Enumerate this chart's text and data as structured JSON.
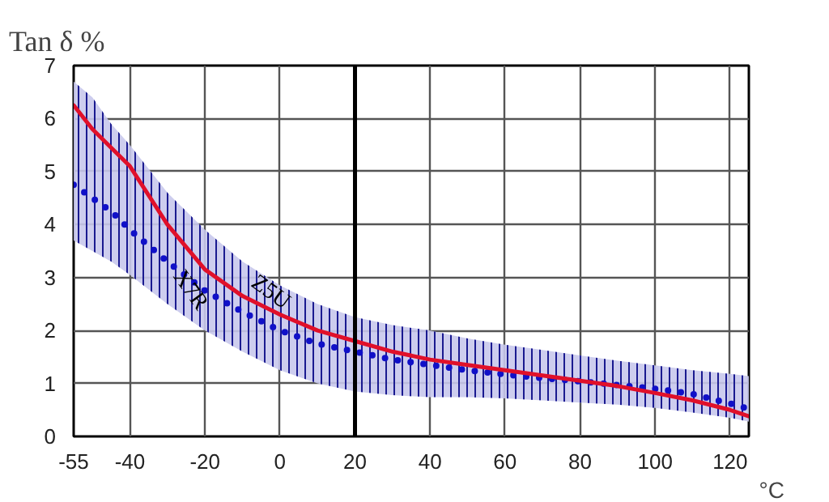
{
  "chart_data": {
    "type": "line",
    "title": "Tan δ %",
    "xlabel": "°C",
    "x": [
      -55,
      -50,
      -45,
      -40,
      -30,
      -20,
      -10,
      0,
      10,
      20,
      30,
      40,
      50,
      60,
      70,
      80,
      90,
      100,
      110,
      120,
      125
    ],
    "series": [
      {
        "name": "X7R",
        "color": "#1010c8",
        "line_style": "dotted",
        "values": [
          4.75,
          4.5,
          4.25,
          3.9,
          3.3,
          2.75,
          2.35,
          2.0,
          1.75,
          1.6,
          1.45,
          1.35,
          1.25,
          1.17,
          1.1,
          1.04,
          0.97,
          0.9,
          0.8,
          0.62,
          0.52
        ],
        "upper": [
          6.7,
          6.4,
          5.9,
          5.5,
          4.6,
          3.9,
          3.3,
          2.85,
          2.5,
          2.25,
          2.1,
          2.0,
          1.85,
          1.73,
          1.63,
          1.53,
          1.43,
          1.34,
          1.25,
          1.18,
          1.14
        ],
        "lower": [
          3.7,
          3.5,
          3.3,
          3.05,
          2.5,
          2.0,
          1.6,
          1.25,
          1.0,
          0.85,
          0.78,
          0.74,
          0.74,
          0.72,
          0.68,
          0.64,
          0.6,
          0.54,
          0.45,
          0.35,
          0.28
        ]
      },
      {
        "name": "Z5U",
        "color": "#e0102a",
        "line_style": "solid",
        "values": [
          6.25,
          5.8,
          5.45,
          5.1,
          4.0,
          3.15,
          2.65,
          2.3,
          2.0,
          1.8,
          1.6,
          1.45,
          1.35,
          1.25,
          1.15,
          1.05,
          0.95,
          0.82,
          0.68,
          0.5,
          0.38
        ]
      }
    ],
    "xlim": [
      -55,
      125
    ],
    "ylim": [
      0,
      7
    ],
    "xticks": [
      -55,
      -40,
      -20,
      0,
      20,
      40,
      60,
      80,
      100,
      120
    ],
    "yticks": [
      0,
      1,
      2,
      3,
      4,
      5,
      6,
      7
    ],
    "ref_lines": [
      {
        "axis": "x",
        "value": 20,
        "color": "#000000"
      }
    ],
    "grid": true,
    "legend": false
  }
}
